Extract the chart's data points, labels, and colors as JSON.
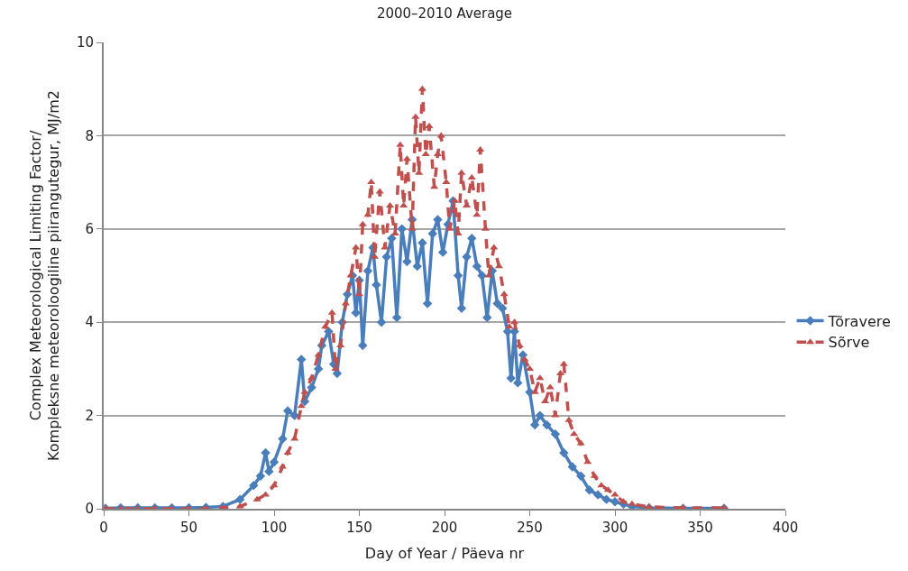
{
  "chart_data": {
    "type": "line",
    "title": "2000–2010 Average",
    "xlabel": "Day of Year / Päeva nr",
    "ylabel": "Complex Meteorological Limiting Factor/\nKompleksne meteoroloogiline piirangutegur, MJ/m2",
    "xlim": [
      0,
      400
    ],
    "xticks": [
      0,
      50,
      100,
      150,
      200,
      250,
      300,
      350,
      400
    ],
    "ylim": [
      0,
      10
    ],
    "yticks": [
      0,
      2,
      4,
      6,
      8,
      10
    ],
    "grid": "y",
    "legend": "right",
    "series": [
      {
        "name": "Tõravere",
        "color": "#4a7ebb",
        "marker": "diamond",
        "line_style": "solid",
        "x": [
          1,
          10,
          20,
          30,
          40,
          50,
          60,
          70,
          80,
          88,
          92,
          95,
          97,
          100,
          105,
          108,
          112,
          116,
          118,
          122,
          126,
          128,
          132,
          135,
          137,
          140,
          143,
          146,
          148,
          150,
          152,
          155,
          158,
          160,
          163,
          166,
          169,
          172,
          175,
          178,
          181,
          184,
          187,
          190,
          193,
          196,
          199,
          202,
          205,
          208,
          210,
          213,
          216,
          219,
          222,
          225,
          228,
          231,
          234,
          237,
          239,
          241,
          243,
          246,
          250,
          253,
          256,
          260,
          265,
          270,
          275,
          280,
          285,
          290,
          295,
          300,
          305,
          310,
          320,
          340,
          364
        ],
        "values": [
          0.01,
          0.02,
          0.02,
          0.02,
          0.02,
          0.02,
          0.03,
          0.05,
          0.2,
          0.5,
          0.7,
          1.2,
          0.8,
          1.0,
          1.5,
          2.1,
          2.0,
          3.2,
          2.3,
          2.6,
          3.0,
          3.5,
          3.8,
          3.1,
          2.9,
          4.0,
          4.6,
          5.0,
          4.2,
          4.9,
          3.5,
          5.1,
          5.6,
          4.8,
          4.0,
          5.4,
          5.8,
          4.1,
          6.0,
          5.3,
          6.2,
          5.2,
          5.7,
          4.4,
          5.9,
          6.2,
          5.5,
          6.1,
          6.6,
          5.0,
          4.3,
          5.4,
          5.8,
          5.2,
          5.0,
          4.1,
          5.1,
          4.4,
          4.3,
          3.8,
          2.8,
          3.8,
          2.7,
          3.3,
          2.5,
          1.8,
          2.0,
          1.8,
          1.6,
          1.2,
          0.9,
          0.7,
          0.4,
          0.3,
          0.2,
          0.15,
          0.1,
          0.05,
          0.02,
          0.01,
          0.01
        ]
      },
      {
        "name": "Sõrve",
        "color": "#c0504d",
        "marker": "triangle",
        "line_style": "dashed",
        "x": [
          1,
          10,
          20,
          30,
          40,
          50,
          60,
          70,
          80,
          90,
          95,
          100,
          105,
          108,
          112,
          116,
          118,
          122,
          126,
          130,
          134,
          136,
          139,
          142,
          145,
          148,
          150,
          152,
          155,
          157,
          159,
          162,
          165,
          168,
          171,
          174,
          176,
          178,
          181,
          183,
          185,
          187,
          189,
          191,
          194,
          196,
          198,
          201,
          203,
          206,
          208,
          210,
          213,
          216,
          219,
          221,
          224,
          226,
          229,
          232,
          235,
          238,
          241,
          244,
          247,
          250,
          253,
          256,
          259,
          262,
          265,
          268,
          270,
          273,
          276,
          280,
          284,
          288,
          292,
          296,
          300,
          305,
          310,
          320,
          340,
          364
        ],
        "values": [
          0.0,
          0.0,
          0.0,
          0.0,
          0.0,
          0.0,
          0.0,
          0.02,
          0.05,
          0.2,
          0.3,
          0.5,
          0.9,
          1.2,
          1.5,
          2.2,
          2.5,
          2.8,
          3.3,
          3.9,
          4.2,
          3.0,
          3.5,
          4.4,
          5.0,
          5.6,
          4.6,
          6.1,
          6.3,
          7.0,
          5.4,
          6.8,
          5.6,
          6.5,
          5.9,
          7.8,
          6.5,
          7.5,
          6.0,
          8.4,
          7.2,
          9.0,
          7.6,
          8.2,
          6.9,
          7.6,
          8.0,
          7.0,
          6.0,
          6.6,
          5.9,
          7.2,
          6.5,
          7.1,
          6.3,
          7.7,
          6.0,
          5.0,
          5.6,
          5.2,
          4.6,
          3.9,
          4.0,
          3.5,
          3.2,
          3.0,
          2.5,
          2.8,
          2.3,
          2.6,
          2.0,
          2.9,
          3.1,
          1.9,
          1.6,
          1.4,
          1.0,
          0.7,
          0.5,
          0.4,
          0.3,
          0.15,
          0.1,
          0.04,
          0.02,
          0.02
        ]
      }
    ]
  }
}
